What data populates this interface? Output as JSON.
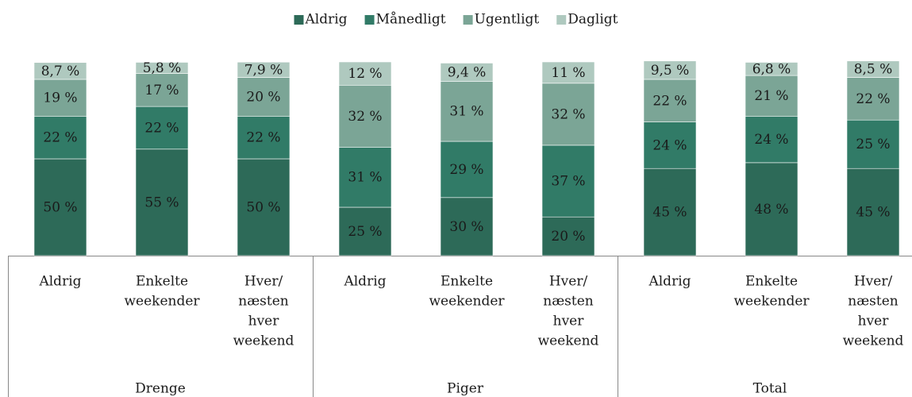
{
  "chart_data": {
    "type": "stacked_bar",
    "groups": [
      "Drenge",
      "Piger",
      "Total"
    ],
    "categories": [
      [
        "Aldrig"
      ],
      [
        "Enkelte",
        "weekender"
      ],
      [
        "Hver/",
        "næsten",
        "hver",
        "weekend"
      ],
      [
        "Aldrig"
      ],
      [
        "Enkelte",
        "weekender"
      ],
      [
        "Hver/",
        "næsten",
        "hver",
        "weekend"
      ],
      [
        "Aldrig"
      ],
      [
        "Enkelte",
        "weekender"
      ],
      [
        "Hver/",
        "næsten",
        "hver",
        "weekend"
      ]
    ],
    "ylim": [
      0,
      100
    ],
    "series": [
      {
        "name": "Aldrig",
        "color": "#2d6a58",
        "values": [
          50,
          55,
          50,
          25,
          30,
          20,
          45,
          48,
          45
        ],
        "value_labels": [
          "50 %",
          "55 %",
          "50 %",
          "25 %",
          "30 %",
          "20 %",
          "45 %",
          "48 %",
          "45 %"
        ]
      },
      {
        "name": "Månedligt",
        "color": "#317b67",
        "values": [
          22,
          22,
          22,
          31,
          29,
          37,
          24,
          24,
          25
        ],
        "value_labels": [
          "22 %",
          "22 %",
          "22 %",
          "31 %",
          "29 %",
          "37 %",
          "24 %",
          "24 %",
          "25 %"
        ]
      },
      {
        "name": "Ugentligt",
        "color": "#7ba596",
        "values": [
          19,
          17,
          20,
          32,
          31,
          32,
          22,
          21,
          22
        ],
        "value_labels": [
          "19 %",
          "17 %",
          "20 %",
          "32 %",
          "31 %",
          "32 %",
          "22 %",
          "21 %",
          "22 %"
        ]
      },
      {
        "name": "Dagligt",
        "color": "#afc9bf",
        "values": [
          8.7,
          5.8,
          7.9,
          12,
          9.4,
          11,
          9.5,
          6.8,
          8.5
        ],
        "value_labels": [
          "8,7 %",
          "5,8 %",
          "7,9 %",
          "12 %",
          "9,4 %",
          "11 %",
          "9,5 %",
          "6,8 %",
          "8,5 %"
        ]
      }
    ]
  }
}
